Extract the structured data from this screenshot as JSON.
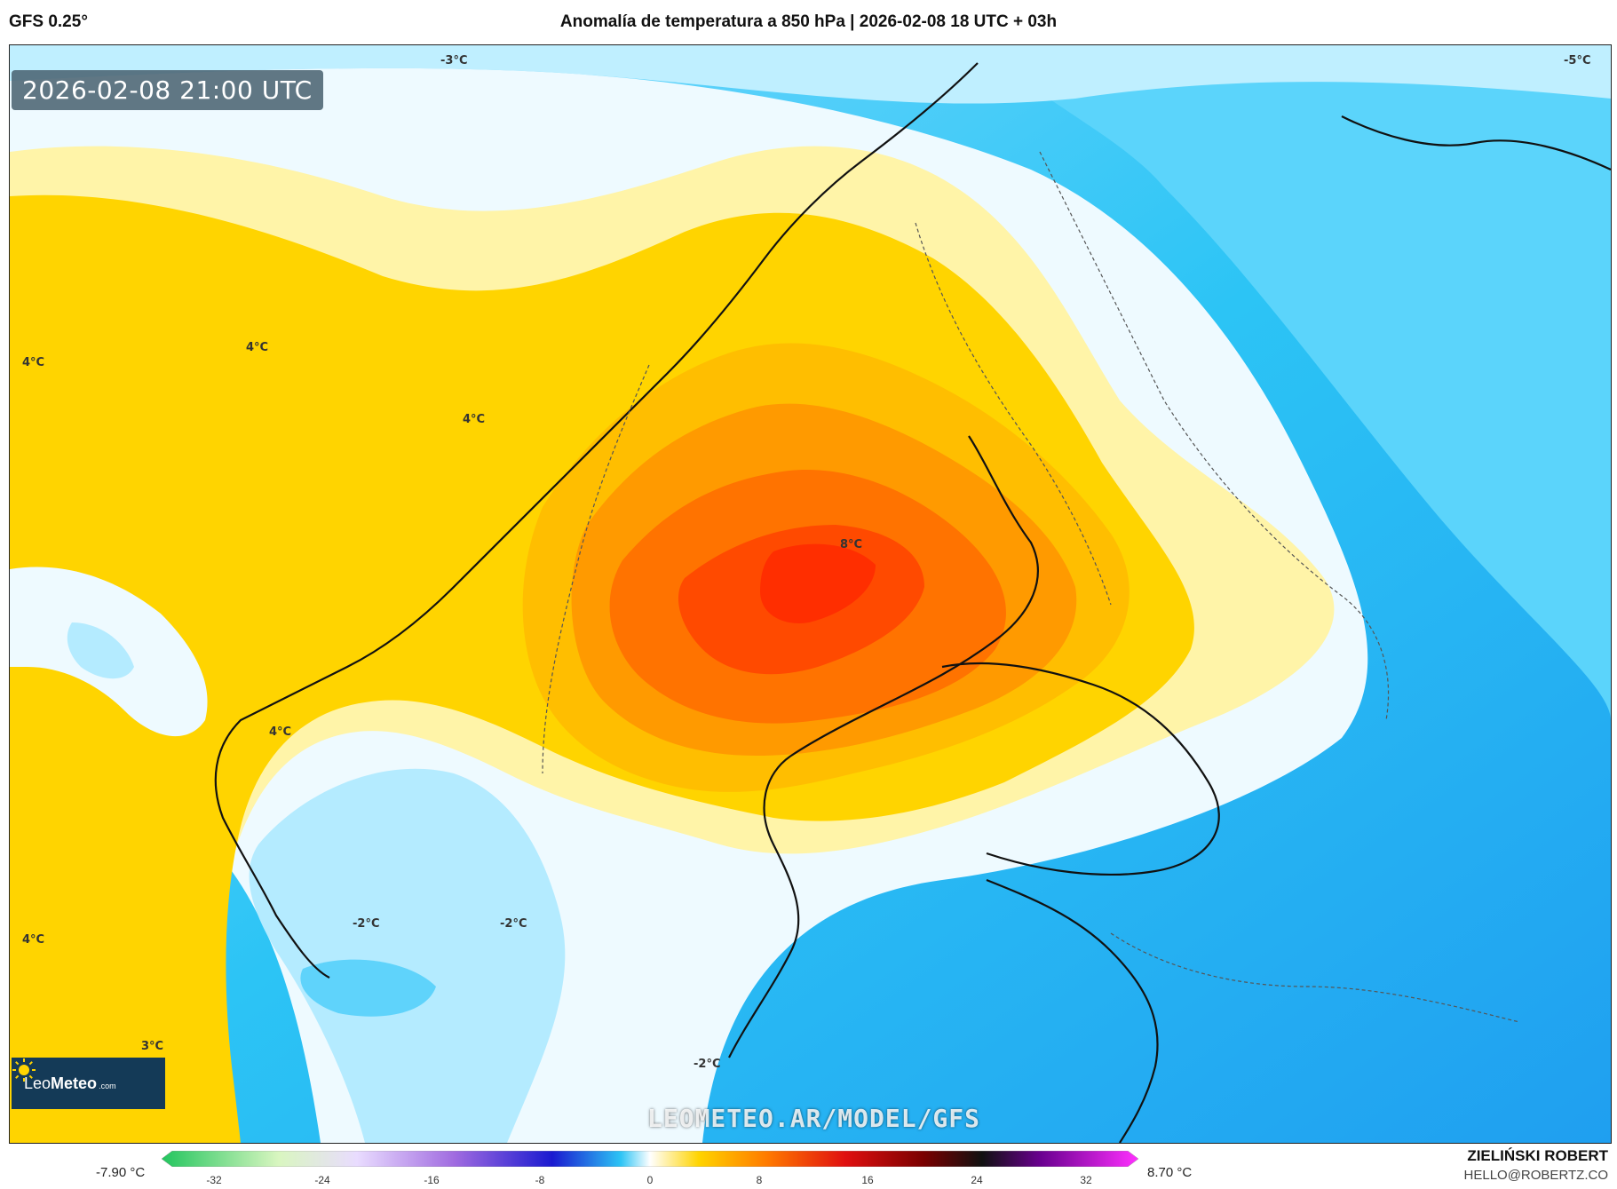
{
  "header": {
    "model": "GFS 0.25°",
    "title": "Anomalía de temperatura a 850 hPa | 2026-02-08 18 UTC + 03h"
  },
  "map": {
    "timestamp": "2026-02-08 21:00 UTC",
    "watermark": "LEOMETEO.AR/MODEL/GFS",
    "logo": {
      "brand_light": "Leo",
      "brand_bold": "Meteo",
      "domain": ".com",
      "icon": "sun-icon"
    },
    "contour_labels": [
      {
        "text": "-3°C"
      },
      {
        "text": "-5°C"
      },
      {
        "text": "4°C"
      },
      {
        "text": "4°C"
      },
      {
        "text": "4°C"
      },
      {
        "text": "8°C"
      },
      {
        "text": "4°C"
      },
      {
        "text": "-2°C"
      },
      {
        "text": "-2°C"
      },
      {
        "text": "4°C"
      },
      {
        "text": "3°C"
      },
      {
        "text": "-2°C"
      }
    ],
    "colors": {
      "warm_yellow": "#ffd400",
      "pale_yellow": "#fff4a8",
      "orange": "#ffa500",
      "dark_orange": "#ff7a00",
      "red_orange": "#ff4000",
      "light_blue": "#bfefff",
      "cyan": "#40d0ff",
      "blue": "#1fa8f0"
    }
  },
  "colorbar": {
    "min_label": "-7.90 °C",
    "max_label": "8.70 °C",
    "ticks": [
      "-32",
      "-24",
      "-16",
      "-8",
      "0",
      "8",
      "16",
      "24",
      "32"
    ]
  },
  "credit": {
    "name": "ZIELIŃSKI ROBERT",
    "email": "HELLO@ROBERTZ.CO"
  }
}
